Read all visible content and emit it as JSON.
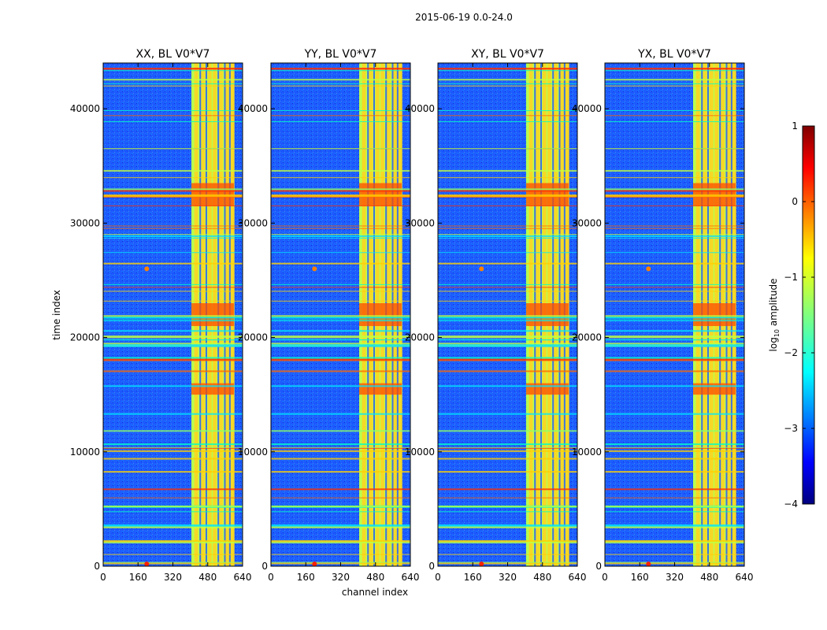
{
  "suptitle": "2015-06-19 0.0-24.0",
  "chart_data": {
    "type": "heatmap",
    "xlabel": "channel index",
    "ylabel": "time index",
    "x_range": [
      0,
      640
    ],
    "y_range": [
      0,
      44000
    ],
    "x_ticks": [
      "0",
      "160",
      "320",
      "480",
      "640"
    ],
    "x_tick_values": [
      0,
      160,
      320,
      480,
      640
    ],
    "y_ticks": [
      "0",
      "10000",
      "20000",
      "30000",
      "40000"
    ],
    "y_tick_values": [
      0,
      10000,
      20000,
      30000,
      40000
    ],
    "panels": [
      {
        "title": "XX, BL V0*V7"
      },
      {
        "title": "YY, BL V0*V7"
      },
      {
        "title": "XY, BL V0*V7"
      },
      {
        "title": "YX, BL V0*V7"
      }
    ],
    "colorbar": {
      "label": "log10 amplitude",
      "label_base": "log",
      "label_sub": "10",
      "label_rest": " amplitude",
      "range": [
        -4,
        1
      ],
      "ticks": [
        "1",
        "0",
        "−1",
        "−2",
        "−3",
        "−4"
      ],
      "tick_values": [
        1,
        0,
        -1,
        -2,
        -3,
        -4
      ],
      "colormap": "jet"
    },
    "bright_channel_band": [
      405,
      600
    ],
    "hot_time_bands": [
      [
        31500,
        33500
      ],
      [
        15000,
        16000
      ],
      [
        21000,
        23000
      ]
    ]
  }
}
